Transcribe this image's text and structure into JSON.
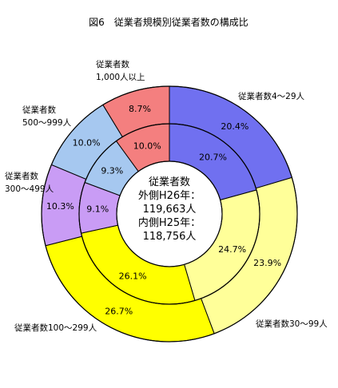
{
  "chart_data": {
    "type": "pie",
    "title": "図6　従業者規模別従業者数の構成比",
    "categories": [
      "従業者数4～29人",
      "従業者数30～99人",
      "従業者数100～299人",
      "従業者数300～499人",
      "従業者数500～999人",
      "従業者数1,000人以上"
    ],
    "category_labels": [
      [
        "従業者数4～29人"
      ],
      [
        "従業者数30～99人"
      ],
      [
        "従業者数100～299人"
      ],
      [
        "従業者数",
        "300～499人"
      ],
      [
        "従業者数",
        "500～999人"
      ],
      [
        "従業者数",
        "1,000人以上"
      ]
    ],
    "series": [
      {
        "values": [
          20.4,
          23.9,
          26.7,
          10.3,
          10.0,
          8.7
        ],
        "labels": [
          "20.4%",
          "23.9%",
          "26.7%",
          "10.3%",
          "10.0%",
          "8.7%"
        ]
      },
      {
        "values": [
          20.7,
          24.7,
          26.1,
          9.1,
          9.3,
          10.0
        ],
        "labels": [
          "20.7%",
          "24.7%",
          "26.1%",
          "9.1%",
          "9.3%",
          "10.0%"
        ]
      }
    ],
    "colors": [
      "#7070f0",
      "#ffff99",
      "#ffff00",
      "#c99cf5",
      "#a6c8f0",
      "#f47f7f"
    ],
    "center_text": [
      "従業者数",
      "外側H26年：",
      "119,663人",
      "内側H25年：",
      "118,756人"
    ]
  }
}
